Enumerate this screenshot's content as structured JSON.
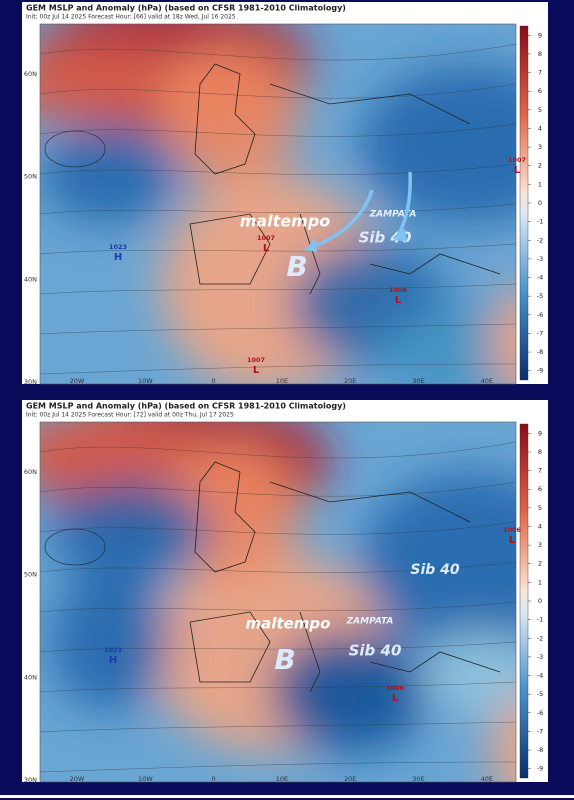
{
  "panels": [
    {
      "title": "GEM MSLP and Anomaly (hPa) (based on CFSR 1981-2010 Climatology)",
      "info": "Init: 00z Jul 14 2025   Forecast Hour: [66]   valid at 18z Wed, Jul 16 2025",
      "lat_labels": [
        "60N",
        "50N",
        "40N",
        "30N"
      ],
      "lon_labels": [
        "20W",
        "10W",
        "0",
        "10E",
        "20E",
        "30E",
        "40E"
      ],
      "colorbar_ticks": [
        9,
        8,
        7,
        6,
        5,
        4,
        3,
        2,
        1,
        0,
        -1,
        -2,
        -3,
        -4,
        -5,
        -6,
        -7,
        -8,
        -9
      ],
      "annotations": [
        "maltempo",
        "ZAMPATA",
        "Sib 40",
        "B"
      ],
      "highs": [
        {
          "value": 1023,
          "symbol": "H"
        }
      ],
      "lows": [
        {
          "value": 1007,
          "symbol": "L"
        },
        {
          "value": 1006,
          "symbol": "L"
        },
        {
          "value": 1007,
          "symbol": "L"
        },
        {
          "value": 1007,
          "symbol": "L"
        }
      ]
    },
    {
      "title": "GEM MSLP and Anomaly (hPa) (based on CFSR 1981-2010 Climatology)",
      "info": "Init: 00z Jul 14 2025   Forecast Hour: [72]   valid at 00z Thu, Jul 17 2025",
      "lat_labels": [
        "60N",
        "50N",
        "40N",
        "30N"
      ],
      "lon_labels": [
        "20W",
        "10W",
        "0",
        "10E",
        "20E",
        "30E",
        "40E"
      ],
      "colorbar_ticks": [
        9,
        8,
        7,
        6,
        5,
        4,
        3,
        2,
        1,
        0,
        -1,
        -2,
        -3,
        -4,
        -5,
        -6,
        -7,
        -8,
        -9
      ],
      "annotations": [
        "Sib 40",
        "maltempo",
        "ZAMPATA",
        "Sib 40",
        "B"
      ],
      "highs": [
        {
          "value": 1023,
          "symbol": "H"
        }
      ],
      "lows": [
        {
          "value": 1006,
          "symbol": "L"
        },
        {
          "value": 1006,
          "symbol": "L"
        }
      ]
    }
  ]
}
